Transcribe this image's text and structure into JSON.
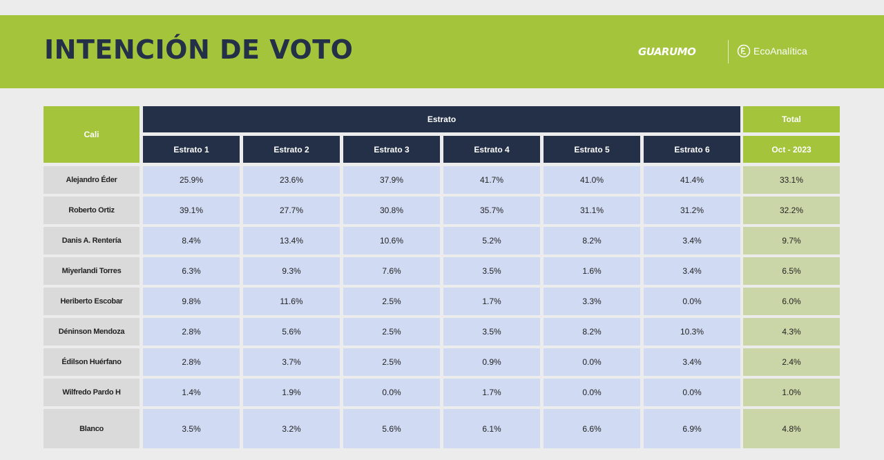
{
  "header": {
    "title": "INTENCIÓN DE VOTO",
    "brand": "GUARUMO",
    "partner": "EcoAnalítica",
    "accent_color": "#a3c43b",
    "navy_color": "#233047"
  },
  "chart_data": {
    "type": "table",
    "row_header": "Cali",
    "group_header": "Estrato",
    "total_header": "Total",
    "total_period": "Oct - 2023",
    "columns": [
      "Estrato 1",
      "Estrato 2",
      "Estrato 3",
      "Estrato 4",
      "Estrato 5",
      "Estrato 6"
    ],
    "rows": [
      {
        "name": "Alejandro Éder",
        "values": [
          "25.9%",
          "23.6%",
          "37.9%",
          "41.7%",
          "41.0%",
          "41.4%"
        ],
        "total": "33.1%"
      },
      {
        "name": "Roberto Ortiz",
        "values": [
          "39.1%",
          "27.7%",
          "30.8%",
          "35.7%",
          "31.1%",
          "31.2%"
        ],
        "total": "32.2%"
      },
      {
        "name": "Danis A. Rentería",
        "values": [
          "8.4%",
          "13.4%",
          "10.6%",
          "5.2%",
          "8.2%",
          "3.4%"
        ],
        "total": "9.7%"
      },
      {
        "name": "Miyerlandi Torres",
        "values": [
          "6.3%",
          "9.3%",
          "7.6%",
          "3.5%",
          "1.6%",
          "3.4%"
        ],
        "total": "6.5%"
      },
      {
        "name": "Heriberto Escobar",
        "values": [
          "9.8%",
          "11.6%",
          "2.5%",
          "1.7%",
          "3.3%",
          "0.0%"
        ],
        "total": "6.0%"
      },
      {
        "name": "Déninson Mendoza",
        "values": [
          "2.8%",
          "5.6%",
          "2.5%",
          "3.5%",
          "8.2%",
          "10.3%"
        ],
        "total": "4.3%"
      },
      {
        "name": "Édilson Huérfano",
        "values": [
          "2.8%",
          "3.7%",
          "2.5%",
          "0.9%",
          "0.0%",
          "3.4%"
        ],
        "total": "2.4%"
      },
      {
        "name": "Wilfredo Pardo H",
        "values": [
          "1.4%",
          "1.9%",
          "0.0%",
          "1.7%",
          "0.0%",
          "0.0%"
        ],
        "total": "1.0%"
      },
      {
        "name": "Blanco",
        "values": [
          "3.5%",
          "3.2%",
          "5.6%",
          "6.1%",
          "6.6%",
          "6.9%"
        ],
        "total": "4.8%"
      }
    ]
  }
}
